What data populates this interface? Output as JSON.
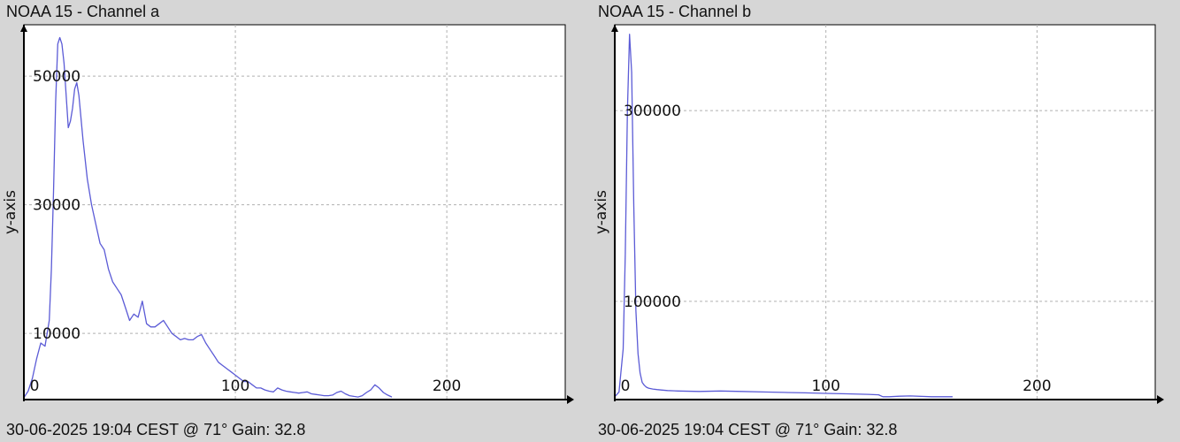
{
  "panels": [
    {
      "title": "NOAA 15 - Channel a",
      "footer": "30-06-2025 19:04 CEST @ 71° Gain: 32.8"
    },
    {
      "title": "NOAA 15 - Channel b",
      "footer": "30-06-2025 19:04 CEST @ 71° Gain: 32.8"
    }
  ],
  "chart_data": [
    {
      "type": "line",
      "title": "NOAA 15 - Channel a",
      "xlabel": "",
      "ylabel": "y-axis",
      "xlim": [
        0,
        256
      ],
      "ylim": [
        -300,
        58000
      ],
      "xticks": [
        0,
        100,
        200
      ],
      "yticks": [
        10000,
        30000,
        50000
      ],
      "grid": true,
      "series_color": "#5b5bd6",
      "series": [
        {
          "x": [
            0,
            2,
            4,
            6,
            8,
            10,
            12,
            13,
            14,
            15,
            16,
            17,
            18,
            19,
            20,
            21,
            22,
            23,
            24,
            25,
            26,
            28,
            30,
            32,
            34,
            36,
            38,
            40,
            42,
            44,
            46,
            48,
            50,
            52,
            54,
            56,
            58,
            60,
            62,
            64,
            66,
            68,
            70,
            72,
            74,
            76,
            78,
            80,
            82,
            84,
            86,
            88,
            90,
            92,
            94,
            96,
            98,
            100,
            102,
            104,
            106,
            108,
            110,
            112,
            114,
            116,
            118,
            120,
            122,
            124,
            126,
            128,
            130,
            132,
            134,
            136,
            138,
            140,
            142,
            144,
            146,
            148,
            150,
            152,
            154,
            156,
            158,
            160,
            162,
            164,
            166,
            168,
            170,
            172,
            174
          ],
          "y": [
            0,
            1000,
            3000,
            6000,
            8500,
            8000,
            12000,
            20000,
            32000,
            46000,
            55000,
            56000,
            55000,
            52000,
            47000,
            42000,
            43000,
            45000,
            48000,
            49000,
            47000,
            40000,
            34000,
            30000,
            27000,
            24000,
            23000,
            20000,
            18000,
            17000,
            16000,
            14000,
            12000,
            13000,
            12500,
            15000,
            11500,
            11000,
            11000,
            11500,
            12000,
            11000,
            10000,
            9500,
            9000,
            9200,
            9000,
            9000,
            9500,
            9800,
            8500,
            7500,
            6500,
            5500,
            5000,
            4500,
            4000,
            3500,
            3000,
            2500,
            2500,
            2000,
            1500,
            1500,
            1200,
            1000,
            900,
            1500,
            1200,
            1000,
            900,
            800,
            700,
            800,
            900,
            600,
            500,
            400,
            300,
            300,
            400,
            800,
            1000,
            600,
            300,
            200,
            100,
            300,
            800,
            1200,
            2000,
            1500,
            800,
            400,
            100
          ]
        }
      ]
    },
    {
      "type": "line",
      "title": "NOAA 15 - Channel b",
      "xlabel": "",
      "ylabel": "y-axis",
      "xlim": [
        0,
        256
      ],
      "ylim": [
        -3000,
        390000
      ],
      "xticks": [
        0,
        100,
        200
      ],
      "yticks": [
        100000,
        300000
      ],
      "grid": true,
      "series_color": "#5b5bd6",
      "series": [
        {
          "x": [
            0,
            2,
            4,
            5,
            6,
            7,
            8,
            9,
            10,
            11,
            12,
            13,
            14,
            15,
            16,
            18,
            20,
            22,
            25,
            30,
            40,
            50,
            60,
            70,
            80,
            90,
            100,
            110,
            120,
            125,
            127,
            130,
            135,
            140,
            150,
            160
          ],
          "y": [
            0,
            5000,
            50000,
            150000,
            300000,
            380000,
            340000,
            200000,
            90000,
            45000,
            25000,
            15000,
            12000,
            10000,
            9000,
            8000,
            7500,
            7000,
            6500,
            6000,
            5500,
            6000,
            5500,
            5000,
            4500,
            4000,
            3500,
            3000,
            2500,
            2000,
            0,
            0,
            500,
            800,
            0,
            0
          ]
        }
      ]
    }
  ]
}
